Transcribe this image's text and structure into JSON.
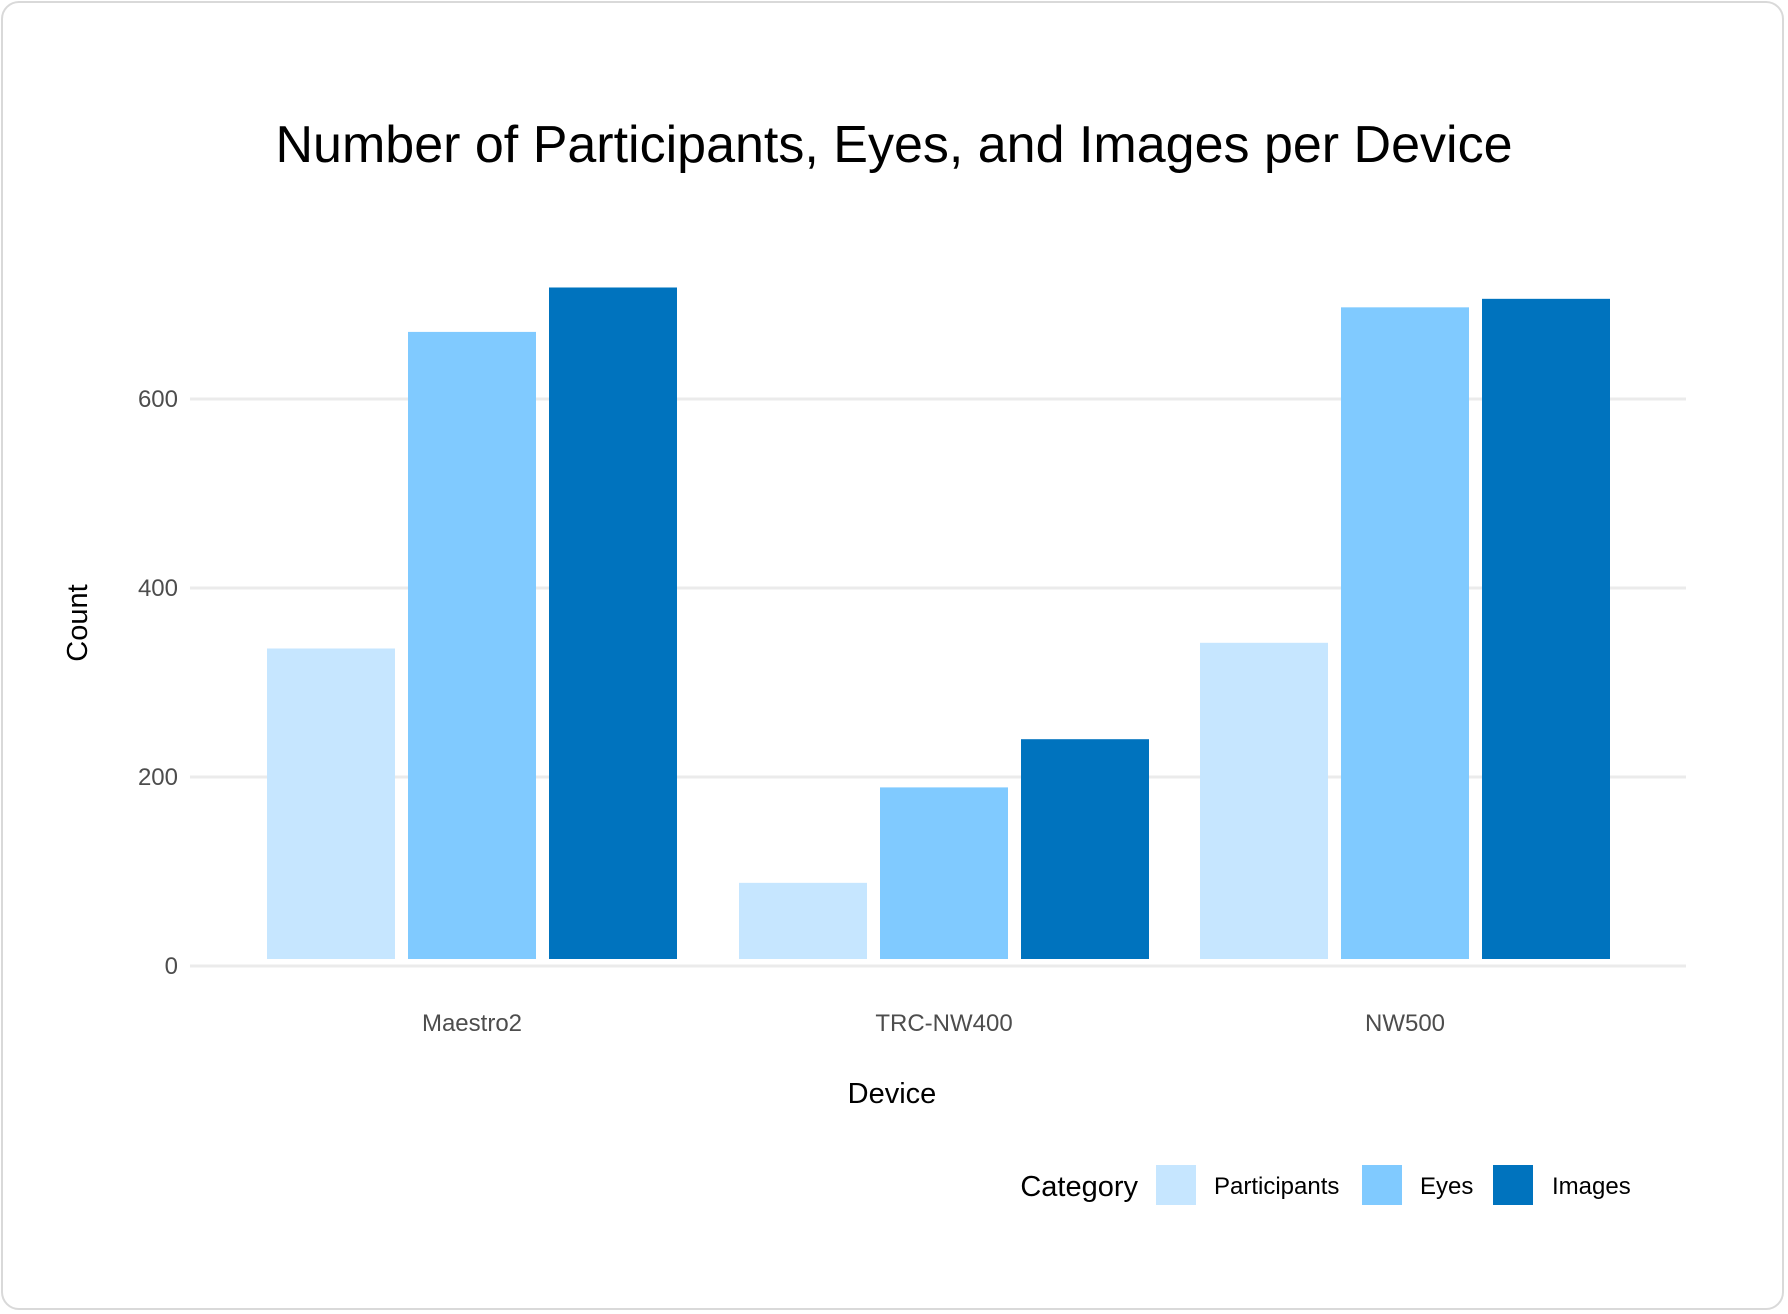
{
  "chart_data": {
    "type": "bar",
    "title": "Number of Participants, Eyes, and Images per Device",
    "xlabel": "Device",
    "ylabel": "Count",
    "categories": [
      "Maestro2",
      "TRC-NW400",
      "NW500"
    ],
    "series": [
      {
        "name": "Participants",
        "color": "#c6e6ff",
        "values": [
          336,
          88,
          342
        ]
      },
      {
        "name": "Eyes",
        "color": "#80caff",
        "values": [
          671,
          189,
          697
        ]
      },
      {
        "name": "Images",
        "color": "#0073be",
        "values": [
          718,
          240,
          706
        ]
      }
    ],
    "ylim": [
      0,
      720
    ],
    "yticks": [
      0,
      200,
      400,
      600
    ],
    "ytick_labels": [
      "0",
      "200",
      "400",
      "600"
    ],
    "grid": true,
    "legend": {
      "title": "Category",
      "position": "bottom-right"
    }
  }
}
